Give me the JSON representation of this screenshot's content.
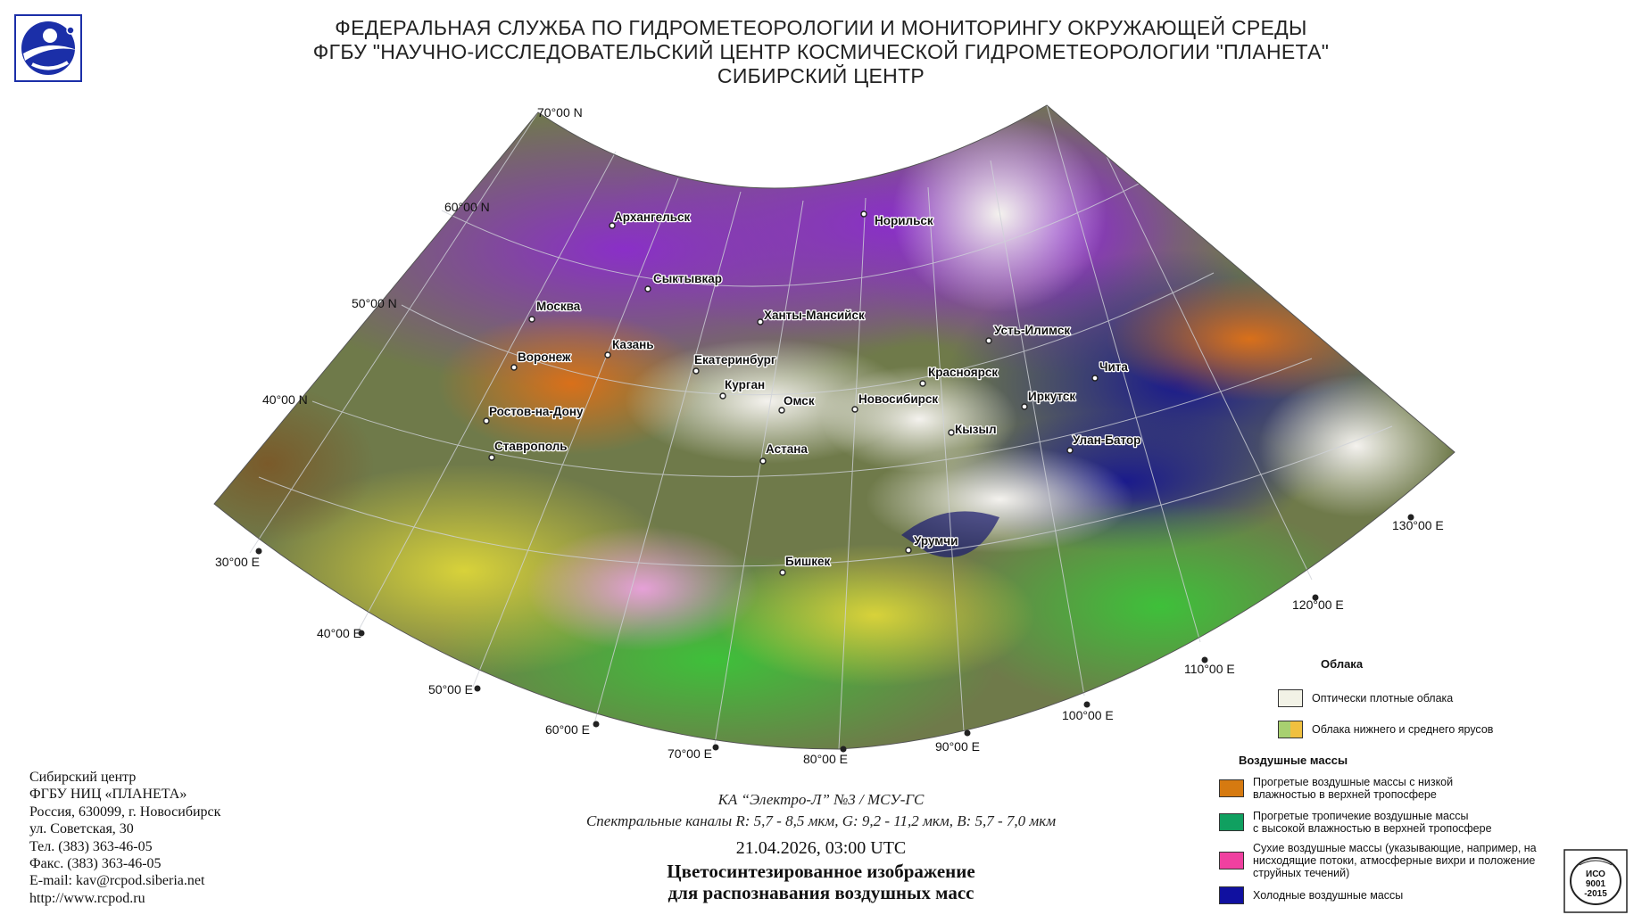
{
  "header": {
    "line1": "ФЕДЕРАЛЬНАЯ СЛУЖБА ПО ГИДРОМЕТЕОРОЛОГИИ И МОНИТОРИНГУ ОКРУЖАЮЩЕЙ СРЕДЫ",
    "line2": "ФГБУ \"НАУЧНО-ИССЛЕДОВАТЕЛЬСКИЙ ЦЕНТР КОСМИЧЕСКОЙ ГИДРОМЕТЕОРОЛОГИИ \"ПЛАНЕТА\"",
    "line3": "СИБИРСКИЙ ЦЕНТР"
  },
  "map": {
    "lat_labels": [
      "70°00 N",
      "60°00 N",
      "50°00 N",
      "40°00 N"
    ],
    "lon_labels": [
      "30°00 E",
      "40°00 E",
      "50°00 E",
      "60°00 E",
      "70°00 E",
      "80°00 E",
      "90°00 E",
      "100°00 E",
      "110°00 E",
      "120°00 E",
      "130°00 E"
    ],
    "cities": [
      "Архангельск",
      "Норильск",
      "Сыктывкар",
      "Москва",
      "Ханты-Мансийск",
      "Усть-Илимск",
      "Казань",
      "Воронеж",
      "Екатеринбург",
      "Красноярск",
      "Чита",
      "Курган",
      "Омск",
      "Новосибирск",
      "Иркутск",
      "Ростов-на-Дону",
      "Кызыл",
      "Улан-Батор",
      "Астана",
      "Ставрополь",
      "Урумчи",
      "Бишкек"
    ]
  },
  "contact": {
    "line1": "Сибирский центр",
    "line2": "ФГБУ НИЦ «ПЛАНЕТА»",
    "line3": "Россия, 630099, г. Новосибирск",
    "line4": "ул. Советская, 30",
    "line5": "Тел. (383) 363-46-05",
    "line6": "Факс. (383) 363-46-05",
    "line7": "E-mail: kav@rcpod.siberia.net",
    "line8": "http://www.rcpod.ru"
  },
  "caption": {
    "satellite": "КА “Электро-Л” №3 / МСУ-ГС",
    "channels": "Спектральные каналы R: 5,7 - 8,5 мкм, G: 9,2 - 11,2 мкм, B: 5,7 - 7,0 мкм",
    "datetime": "21.04.2026, 03:00 UTC",
    "title1": "Цветосинтезированное изображение",
    "title2": "для распознавания воздушных масс"
  },
  "legend": {
    "clouds_title": "Облака",
    "clouds_dense": "Оптически плотные облака",
    "clouds_low": "Облака нижнего и среднего ярусов",
    "airmass_title": "Воздушные массы",
    "warm_low_1": "Прогретые воздушные массы с низкой",
    "warm_low_2": "влажностью в верхней тропосфере",
    "warm_trop_1": "Прогретые тропичекие воздушные массы",
    "warm_trop_2": "с высокой влажностью в верхней тропосфере",
    "dry_1": "Сухие воздушные массы (указывающие, например, на",
    "dry_2": "нисходящие потоки, атмосферные вихри и положение",
    "dry_3": "струйных течений)",
    "cold": "Холодные воздушные массы",
    "colors": {
      "dense": "#f2f2e6",
      "low_a": "#a8d070",
      "low_b": "#f0c040",
      "warm_low": "#d67a10",
      "warm_trop": "#10a060",
      "dry": "#f040a0",
      "cold": "#1010a0"
    }
  },
  "badge": {
    "l1": "ИСО",
    "l2": "9001",
    "l3": "-2015"
  }
}
